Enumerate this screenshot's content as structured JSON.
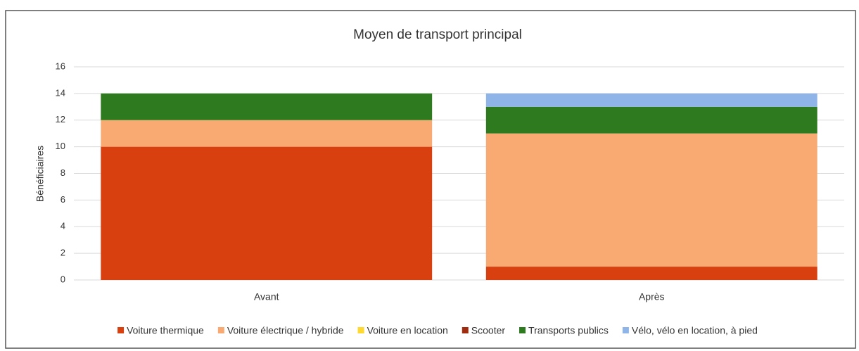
{
  "chart_data": {
    "type": "stacked_bar",
    "title": "Moyen de transport principal",
    "y_label": "Bénéficiaires",
    "categories": [
      "Avant",
      "Après"
    ],
    "series": [
      {
        "name": "Voiture thermique",
        "color": "#d9400f",
        "values": [
          10,
          1
        ]
      },
      {
        "name": "Voiture électrique / hybride",
        "color": "#f8aa72",
        "values": [
          2,
          10
        ]
      },
      {
        "name": "Voiture en location",
        "color": "#ffd930",
        "values": [
          0,
          0
        ]
      },
      {
        "name": "Scooter",
        "color": "#a02c10",
        "values": [
          0,
          0
        ]
      },
      {
        "name": "Transports publics",
        "color": "#2e7a1e",
        "values": [
          2,
          2
        ]
      },
      {
        "name": "Vélo, vélo en location, à pied",
        "color": "#8fb4e8",
        "values": [
          0,
          1
        ]
      }
    ],
    "ylim": [
      0,
      16
    ],
    "yticks": [
      0,
      2,
      4,
      6,
      8,
      10,
      12,
      14,
      16
    ],
    "grid": true,
    "legend": "bottom"
  }
}
